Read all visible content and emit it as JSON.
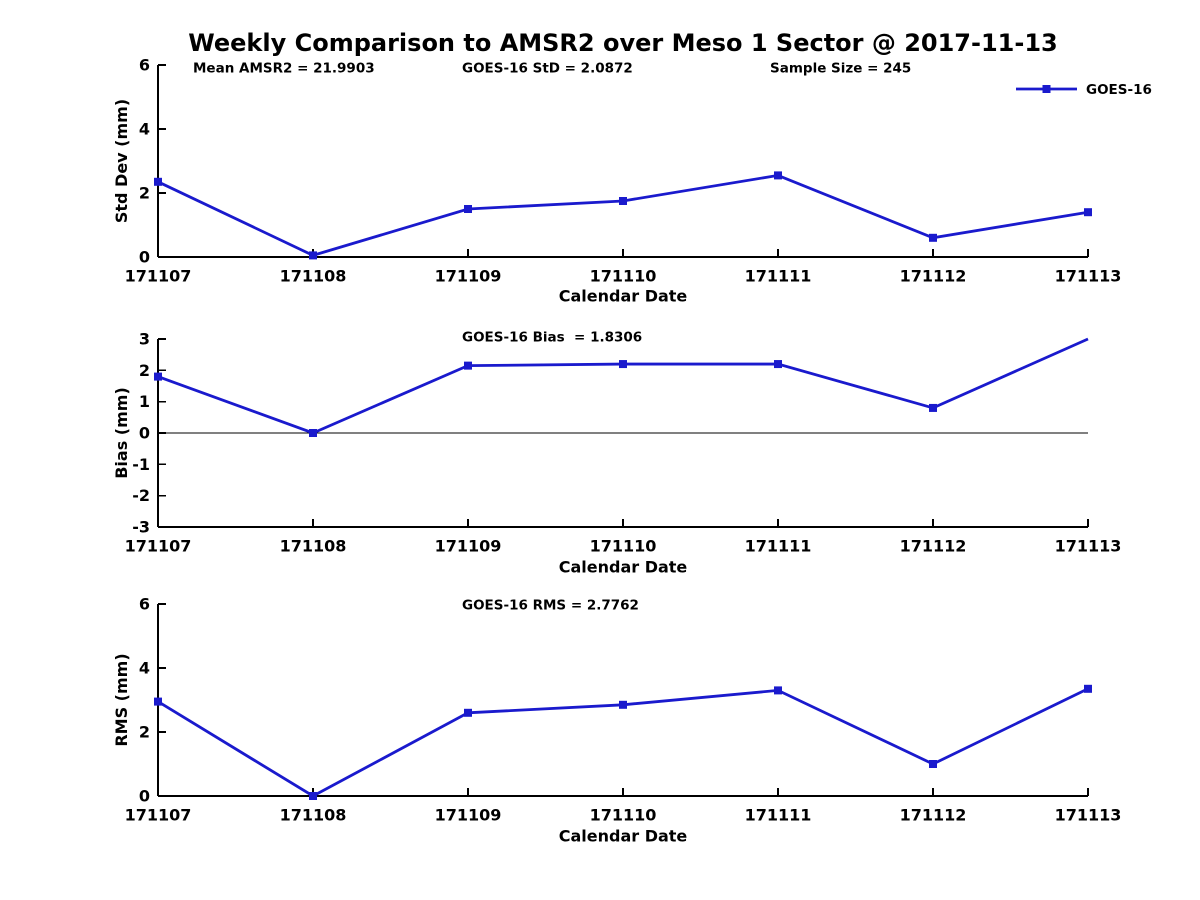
{
  "title": "Weekly Comparison to AMSR2 over Meso 1 Sector @ 2017-11-13",
  "legend": {
    "label": "GOES-16",
    "position": "top-right",
    "marker": "filled-square"
  },
  "colors": {
    "line": "#1a1acd",
    "axis": "#000000",
    "text": "#000000",
    "background": "#ffffff"
  },
  "chart_data": [
    {
      "type": "line",
      "id": "std-dev",
      "ylabel": "Std Dev (mm)",
      "xlabel": "Calendar Date",
      "categories": [
        "171107",
        "171108",
        "171109",
        "171110",
        "171111",
        "171112",
        "171113"
      ],
      "series": [
        {
          "name": "GOES-16",
          "values": [
            2.35,
            0.05,
            1.5,
            1.75,
            2.55,
            0.6,
            1.4
          ]
        }
      ],
      "ylim": [
        0,
        6
      ],
      "yticks": [
        0,
        2,
        4,
        6
      ],
      "grid": false,
      "zero_line": false,
      "show_legend": true,
      "annotations": [
        {
          "text": "Mean AMSR2 = 21.9903"
        },
        {
          "text": "GOES-16 StD = 2.0872"
        },
        {
          "text": "Sample Size = 245"
        }
      ]
    },
    {
      "type": "line",
      "id": "bias",
      "ylabel": "Bias (mm)",
      "xlabel": "Calendar Date",
      "categories": [
        "171107",
        "171108",
        "171109",
        "171110",
        "171111",
        "171112",
        "171113"
      ],
      "series": [
        {
          "name": "GOES-16",
          "values": [
            1.8,
            0.0,
            2.15,
            2.2,
            2.2,
            0.8,
            3.0
          ]
        }
      ],
      "ylim": [
        -3,
        3
      ],
      "yticks": [
        -3,
        -2,
        -1,
        0,
        1,
        2,
        3
      ],
      "grid": false,
      "zero_line": true,
      "show_legend": false,
      "annotations": [
        {
          "text": "GOES-16 Bias  = 1.8306"
        }
      ]
    },
    {
      "type": "line",
      "id": "rms",
      "ylabel": "RMS (mm)",
      "xlabel": "Calendar Date",
      "categories": [
        "171107",
        "171108",
        "171109",
        "171110",
        "171111",
        "171112",
        "171113"
      ],
      "series": [
        {
          "name": "GOES-16",
          "values": [
            2.95,
            0.0,
            2.6,
            2.85,
            3.3,
            1.0,
            3.35
          ]
        }
      ],
      "ylim": [
        0,
        6
      ],
      "yticks": [
        0,
        2,
        4,
        6
      ],
      "grid": false,
      "zero_line": false,
      "show_legend": false,
      "annotations": [
        {
          "text": "GOES-16 RMS = 2.7762"
        }
      ]
    }
  ]
}
